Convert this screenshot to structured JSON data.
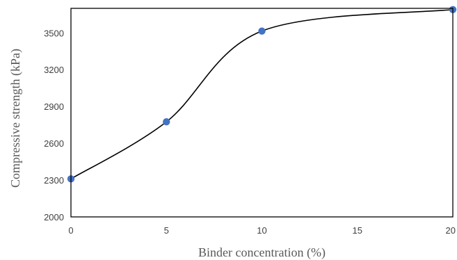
{
  "chart_data": {
    "type": "scatter",
    "title": "",
    "xlabel": "Binder concentration (%)",
    "ylabel": "Compressive strength (kPa)",
    "xlim": [
      0,
      20
    ],
    "ylim": [
      2000,
      3700
    ],
    "x_ticks": [
      0,
      5,
      10,
      15,
      20
    ],
    "x_tick_labels": [
      "0",
      "5",
      "10",
      "15",
      "20"
    ],
    "y_ticks": [
      2000,
      2300,
      2600,
      2900,
      3200,
      3500
    ],
    "y_tick_labels": [
      "2000",
      "2300",
      "2600",
      "2900",
      "3200",
      "3500"
    ],
    "grid": false,
    "smooth_line": true,
    "series": [
      {
        "x": [
          0,
          5,
          10,
          20
        ],
        "y": [
          2310,
          2775,
          3515,
          3690
        ],
        "marker_color": "#4472C4",
        "line_color": "#000000"
      }
    ]
  }
}
